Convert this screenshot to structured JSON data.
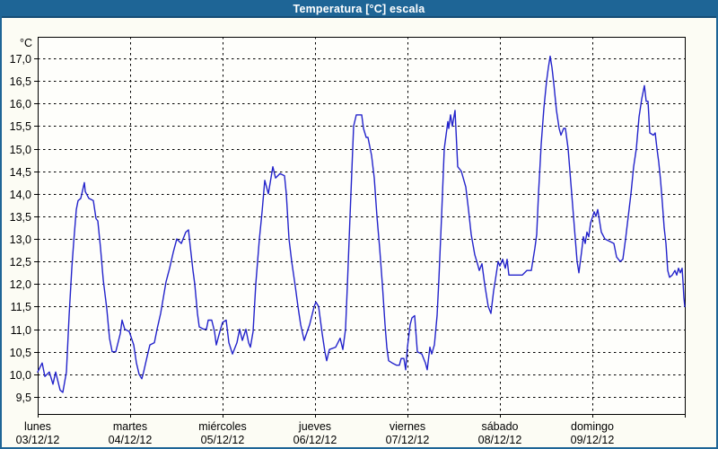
{
  "window": {
    "title": "Temperatura [°C] escala"
  },
  "colors": {
    "titlebar_bg": "#1e6596",
    "titlebar_border": "#174e76",
    "frame_border": "#1e6596",
    "page_bg": "#fcfcf4",
    "plot_bg": "#fefefb",
    "grid": "#000000",
    "axis": "#000000",
    "line": "#2323cb",
    "label_text": "#000000"
  },
  "chart_data": {
    "type": "line",
    "title": "Temperatura [°C] escala",
    "unit_label": "°C",
    "xlabel": "",
    "ylabel": "°C",
    "grid": "dashed",
    "legend_position": "none",
    "ylim": [
      9.12,
      17.48
    ],
    "xlim_days": [
      0,
      7
    ],
    "y_ticks": [
      {
        "value": 17.0,
        "label": "17,0"
      },
      {
        "value": 16.5,
        "label": "16,5"
      },
      {
        "value": 16.0,
        "label": "16,0"
      },
      {
        "value": 15.5,
        "label": "15,5"
      },
      {
        "value": 15.0,
        "label": "15,0"
      },
      {
        "value": 14.5,
        "label": "14,5"
      },
      {
        "value": 14.0,
        "label": "14,0"
      },
      {
        "value": 13.5,
        "label": "13,5"
      },
      {
        "value": 13.0,
        "label": "13,0"
      },
      {
        "value": 12.5,
        "label": "12,5"
      },
      {
        "value": 12.0,
        "label": "12,0"
      },
      {
        "value": 11.5,
        "label": "11,5"
      },
      {
        "value": 11.0,
        "label": "11,0"
      },
      {
        "value": 10.5,
        "label": "10,5"
      },
      {
        "value": 10.0,
        "label": "10,0"
      },
      {
        "value": 9.5,
        "label": "9,5"
      }
    ],
    "x_days": [
      {
        "name": "lunes",
        "date": "03/12/12"
      },
      {
        "name": "martes",
        "date": "04/12/12"
      },
      {
        "name": "miércoles",
        "date": "05/12/12"
      },
      {
        "name": "jueves",
        "date": "06/12/12"
      },
      {
        "name": "viernes",
        "date": "07/12/12"
      },
      {
        "name": "sábado",
        "date": "08/12/12"
      },
      {
        "name": "domingo",
        "date": "09/12/12"
      }
    ],
    "series": [
      {
        "name": "Temperatura",
        "color": "#2323cb",
        "points": [
          [
            0,
            10.05
          ],
          [
            0.049,
            10.25
          ],
          [
            0.078,
            9.95
          ],
          [
            0.126,
            10.05
          ],
          [
            0.165,
            9.78
          ],
          [
            0.194,
            10.05
          ],
          [
            0.243,
            9.65
          ],
          [
            0.272,
            9.6
          ],
          [
            0.311,
            10.05
          ],
          [
            0.34,
            11.3
          ],
          [
            0.369,
            12.35
          ],
          [
            0.388,
            12.9
          ],
          [
            0.417,
            13.65
          ],
          [
            0.437,
            13.85
          ],
          [
            0.466,
            13.9
          ],
          [
            0.505,
            14.25
          ],
          [
            0.515,
            14.05
          ],
          [
            0.553,
            13.9
          ],
          [
            0.602,
            13.85
          ],
          [
            0.631,
            13.45
          ],
          [
            0.65,
            13.4
          ],
          [
            0.68,
            12.8
          ],
          [
            0.709,
            12.1
          ],
          [
            0.748,
            11.45
          ],
          [
            0.777,
            10.8
          ],
          [
            0.806,
            10.5
          ],
          [
            0.845,
            10.5
          ],
          [
            0.893,
            10.9
          ],
          [
            0.913,
            11.2
          ],
          [
            0.942,
            11.0
          ],
          [
            0.99,
            10.95
          ],
          [
            1.039,
            10.65
          ],
          [
            1.068,
            10.25
          ],
          [
            1.097,
            10.0
          ],
          [
            1.126,
            9.9
          ],
          [
            1.146,
            10.05
          ],
          [
            1.184,
            10.4
          ],
          [
            1.214,
            10.65
          ],
          [
            1.262,
            10.7
          ],
          [
            1.291,
            11.0
          ],
          [
            1.33,
            11.35
          ],
          [
            1.359,
            11.7
          ],
          [
            1.388,
            12.05
          ],
          [
            1.427,
            12.35
          ],
          [
            1.466,
            12.7
          ],
          [
            1.505,
            13.0
          ],
          [
            1.553,
            12.9
          ],
          [
            1.602,
            13.15
          ],
          [
            1.631,
            13.2
          ],
          [
            1.65,
            12.85
          ],
          [
            1.68,
            12.3
          ],
          [
            1.699,
            12.0
          ],
          [
            1.728,
            11.35
          ],
          [
            1.748,
            11.05
          ],
          [
            1.796,
            11.0
          ],
          [
            1.825,
            11.0
          ],
          [
            1.845,
            11.2
          ],
          [
            1.883,
            11.2
          ],
          [
            1.913,
            10.95
          ],
          [
            1.932,
            10.65
          ],
          [
            1.971,
            10.95
          ],
          [
            2.0,
            11.15
          ],
          [
            2.039,
            11.2
          ],
          [
            2.068,
            10.7
          ],
          [
            2.107,
            10.45
          ],
          [
            2.155,
            10.7
          ],
          [
            2.184,
            11.0
          ],
          [
            2.214,
            10.75
          ],
          [
            2.252,
            11.0
          ],
          [
            2.282,
            10.7
          ],
          [
            2.301,
            10.6
          ],
          [
            2.33,
            10.95
          ],
          [
            2.359,
            12.0
          ],
          [
            2.379,
            12.5
          ],
          [
            2.398,
            13.0
          ],
          [
            2.427,
            13.6
          ],
          [
            2.456,
            14.3
          ],
          [
            2.495,
            14.0
          ],
          [
            2.544,
            14.6
          ],
          [
            2.573,
            14.35
          ],
          [
            2.621,
            14.45
          ],
          [
            2.67,
            14.4
          ],
          [
            2.689,
            14.0
          ],
          [
            2.718,
            13.0
          ],
          [
            2.748,
            12.5
          ],
          [
            2.786,
            11.95
          ],
          [
            2.816,
            11.5
          ],
          [
            2.845,
            11.1
          ],
          [
            2.883,
            10.75
          ],
          [
            2.942,
            11.1
          ],
          [
            2.99,
            11.5
          ],
          [
            3.01,
            11.6
          ],
          [
            3.039,
            11.5
          ],
          [
            3.078,
            10.9
          ],
          [
            3.107,
            10.5
          ],
          [
            3.126,
            10.3
          ],
          [
            3.155,
            10.55
          ],
          [
            3.223,
            10.6
          ],
          [
            3.272,
            10.8
          ],
          [
            3.301,
            10.55
          ],
          [
            3.33,
            11.0
          ],
          [
            3.35,
            12.0
          ],
          [
            3.379,
            13.5
          ],
          [
            3.398,
            14.5
          ],
          [
            3.417,
            15.5
          ],
          [
            3.447,
            15.75
          ],
          [
            3.505,
            15.75
          ],
          [
            3.524,
            15.45
          ],
          [
            3.553,
            15.25
          ],
          [
            3.573,
            15.25
          ],
          [
            3.612,
            14.85
          ],
          [
            3.641,
            14.35
          ],
          [
            3.67,
            13.5
          ],
          [
            3.699,
            12.8
          ],
          [
            3.728,
            12.0
          ],
          [
            3.757,
            11.1
          ],
          [
            3.777,
            10.6
          ],
          [
            3.796,
            10.3
          ],
          [
            3.835,
            10.25
          ],
          [
            3.883,
            10.2
          ],
          [
            3.913,
            10.2
          ],
          [
            3.932,
            10.35
          ],
          [
            3.961,
            10.35
          ],
          [
            3.981,
            10.1
          ],
          [
            4.0,
            10.6
          ],
          [
            4.029,
            11.1
          ],
          [
            4.049,
            11.25
          ],
          [
            4.078,
            11.3
          ],
          [
            4.107,
            10.5
          ],
          [
            4.155,
            10.45
          ],
          [
            4.194,
            10.25
          ],
          [
            4.214,
            10.1
          ],
          [
            4.243,
            10.6
          ],
          [
            4.262,
            10.45
          ],
          [
            4.291,
            10.65
          ],
          [
            4.32,
            11.3
          ],
          [
            4.34,
            12.1
          ],
          [
            4.369,
            13.5
          ],
          [
            4.398,
            15.0
          ],
          [
            4.437,
            15.6
          ],
          [
            4.447,
            15.45
          ],
          [
            4.466,
            15.75
          ],
          [
            4.485,
            15.5
          ],
          [
            4.515,
            15.85
          ],
          [
            4.544,
            14.6
          ],
          [
            4.583,
            14.5
          ],
          [
            4.631,
            14.15
          ],
          [
            4.66,
            13.65
          ],
          [
            4.689,
            13.1
          ],
          [
            4.728,
            12.65
          ],
          [
            4.757,
            12.45
          ],
          [
            4.777,
            12.3
          ],
          [
            4.806,
            12.45
          ],
          [
            4.835,
            12.0
          ],
          [
            4.874,
            11.5
          ],
          [
            4.903,
            11.35
          ],
          [
            4.932,
            11.85
          ],
          [
            4.951,
            12.1
          ],
          [
            4.981,
            12.5
          ],
          [
            5.0,
            12.4
          ],
          [
            5.029,
            12.55
          ],
          [
            5.058,
            12.35
          ],
          [
            5.078,
            12.55
          ],
          [
            5.097,
            12.2
          ],
          [
            5.146,
            12.2
          ],
          [
            5.194,
            12.2
          ],
          [
            5.243,
            12.2
          ],
          [
            5.291,
            12.3
          ],
          [
            5.34,
            12.3
          ],
          [
            5.379,
            12.8
          ],
          [
            5.398,
            13.1
          ],
          [
            5.417,
            14.0
          ],
          [
            5.447,
            15.1
          ],
          [
            5.476,
            15.9
          ],
          [
            5.505,
            16.5
          ],
          [
            5.524,
            16.8
          ],
          [
            5.544,
            17.05
          ],
          [
            5.563,
            16.8
          ],
          [
            5.583,
            16.45
          ],
          [
            5.612,
            15.85
          ],
          [
            5.641,
            15.45
          ],
          [
            5.66,
            15.3
          ],
          [
            5.689,
            15.45
          ],
          [
            5.709,
            15.45
          ],
          [
            5.738,
            15.0
          ],
          [
            5.757,
            14.5
          ],
          [
            5.777,
            14.0
          ],
          [
            5.796,
            13.5
          ],
          [
            5.816,
            13.0
          ],
          [
            5.835,
            12.5
          ],
          [
            5.854,
            12.25
          ],
          [
            5.883,
            12.7
          ],
          [
            5.903,
            13.05
          ],
          [
            5.922,
            12.9
          ],
          [
            5.942,
            13.15
          ],
          [
            5.961,
            13.05
          ],
          [
            5.981,
            13.35
          ],
          [
            6.019,
            13.6
          ],
          [
            6.039,
            13.5
          ],
          [
            6.058,
            13.65
          ],
          [
            6.097,
            13.15
          ],
          [
            6.136,
            13.0
          ],
          [
            6.184,
            12.95
          ],
          [
            6.233,
            12.9
          ],
          [
            6.262,
            12.6
          ],
          [
            6.301,
            12.5
          ],
          [
            6.33,
            12.55
          ],
          [
            6.359,
            13.0
          ],
          [
            6.388,
            13.5
          ],
          [
            6.417,
            14.0
          ],
          [
            6.447,
            14.6
          ],
          [
            6.476,
            15.0
          ],
          [
            6.505,
            15.7
          ],
          [
            6.534,
            16.1
          ],
          [
            6.563,
            16.4
          ],
          [
            6.583,
            16.05
          ],
          [
            6.602,
            16.05
          ],
          [
            6.621,
            15.35
          ],
          [
            6.66,
            15.3
          ],
          [
            6.68,
            15.35
          ],
          [
            6.699,
            15.0
          ],
          [
            6.718,
            14.7
          ],
          [
            6.738,
            14.3
          ],
          [
            6.757,
            13.8
          ],
          [
            6.777,
            13.25
          ],
          [
            6.796,
            12.9
          ],
          [
            6.816,
            12.3
          ],
          [
            6.835,
            12.15
          ],
          [
            6.864,
            12.2
          ],
          [
            6.893,
            12.3
          ],
          [
            6.913,
            12.2
          ],
          [
            6.932,
            12.35
          ],
          [
            6.951,
            12.25
          ],
          [
            6.971,
            12.35
          ],
          [
            6.981,
            12.05
          ],
          [
            6.99,
            11.7
          ],
          [
            7.0,
            11.5
          ]
        ]
      }
    ]
  }
}
